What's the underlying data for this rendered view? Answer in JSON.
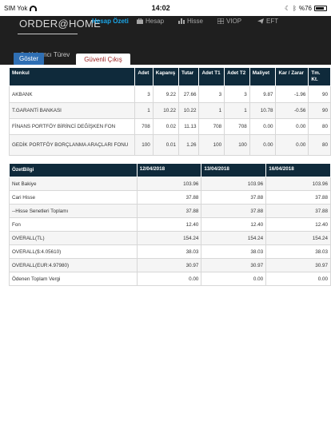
{
  "status": {
    "carrier": "SIM Yok",
    "time": "14:02",
    "battery": "%76"
  },
  "nav": {
    "brand": "ORDER@HOME",
    "items": [
      {
        "label": "Hesap Özeti",
        "icon": "none",
        "active": true
      },
      {
        "label": "Hesap",
        "icon": "briefcase-icon",
        "active": false
      },
      {
        "label": "Hisse",
        "icon": "bar-chart-icon",
        "active": false
      },
      {
        "label": "VIOP",
        "icon": "grid-icon",
        "active": false
      },
      {
        "label": "EFT",
        "icon": "send-icon",
        "active": false
      }
    ],
    "secondary": "Yabancı Türev",
    "logout": "Güvenli Çıkış"
  },
  "show_button": "Göster",
  "holdings": {
    "headers": [
      "Menkul",
      "Adet",
      "Kapanış",
      "Tutar",
      "Adet T1",
      "Adet T2",
      "Maliyet",
      "Kar / Zarar",
      "Tm. Kt."
    ],
    "rows": [
      [
        "AKBANK",
        "3",
        "9.22",
        "27.66",
        "3",
        "3",
        "9.87",
        "-1.96",
        "90"
      ],
      [
        "T.GARANTİ BANKASI",
        "1",
        "10.22",
        "10.22",
        "1",
        "1",
        "10.78",
        "-0.56",
        "90"
      ],
      [
        "FİNANS PORTFÖY BİRİNCİ DEĞİŞKEN FON",
        "708",
        "0.02",
        "11.13",
        "708",
        "708",
        "0.00",
        "0.00",
        "80"
      ],
      [
        "GEDİK PORTFÖY BORÇLANMA ARAÇLARI FONU",
        "100",
        "0.01",
        "1.26",
        "100",
        "100",
        "0.00",
        "0.00",
        "80"
      ]
    ]
  },
  "summary": {
    "headers": [
      "ÖzetBilgi",
      "12/04/2018",
      "13/04/2018",
      "16/04/2018"
    ],
    "rows": [
      [
        "Net Bakiye",
        "103.96",
        "103.96",
        "103.96"
      ],
      [
        "Cari Hisse",
        "37.88",
        "37.88",
        "37.88"
      ],
      [
        "--Hisse Senetleri Toplamı",
        "37.88",
        "37.88",
        "37.88"
      ],
      [
        "Fon",
        "12.40",
        "12.40",
        "12.40"
      ],
      [
        "OVERALL(TL)",
        "154.24",
        "154.24",
        "154.24"
      ],
      [
        "OVERALL($:4.05610)",
        "38.03",
        "38.03",
        "38.03"
      ],
      [
        "OVERALL(EUR:4.97980)",
        "30.97",
        "30.97",
        "30.97"
      ],
      [
        "Ödenen Toplam Vergi",
        "0.00",
        "0.00",
        "0.00"
      ]
    ]
  }
}
